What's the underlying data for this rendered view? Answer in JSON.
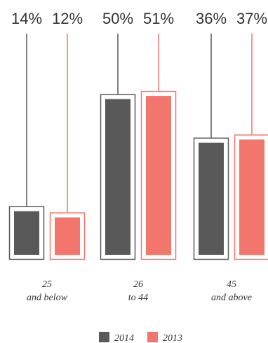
{
  "chart_data": {
    "type": "bar",
    "categories": [
      "25\nand below",
      "26\nto 44",
      "45\nand above"
    ],
    "series": [
      {
        "name": "2014",
        "values": [
          14,
          50,
          36
        ],
        "labels": [
          "14%",
          "50%",
          "36%"
        ],
        "color": "#595959"
      },
      {
        "name": "2013",
        "values": [
          12,
          51,
          37
        ],
        "labels": [
          "12%",
          "51%",
          "37%"
        ],
        "color": "#f2766c"
      }
    ],
    "ylim": [
      0,
      60
    ],
    "grid": false,
    "legend_position": "bottom-center"
  }
}
